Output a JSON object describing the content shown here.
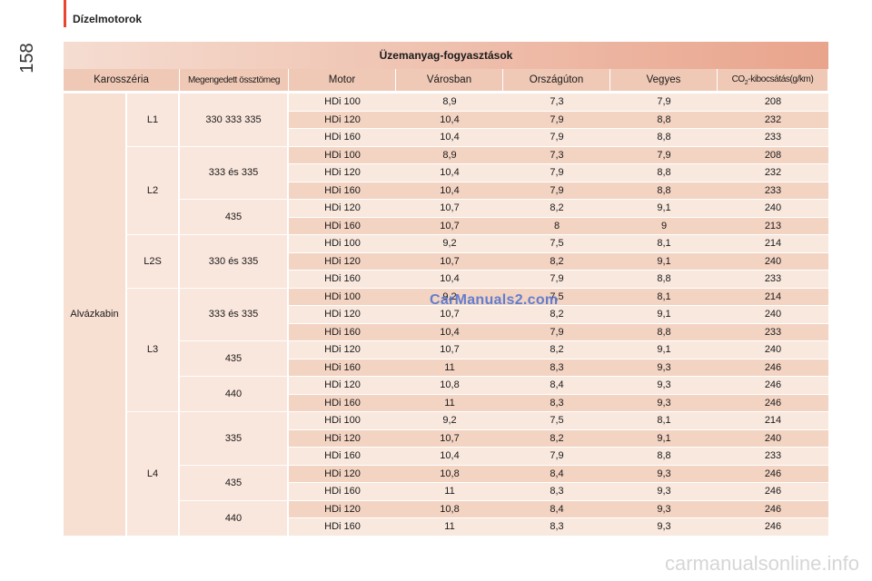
{
  "header": {
    "section": "Dízelmotorok",
    "page_number": "158"
  },
  "table": {
    "title": "Üzemanyag-fogyasztások",
    "columns": {
      "body": "Karosszéria",
      "weight": "Megengedett össztömeg",
      "engine": "Motor",
      "city": "Városban",
      "highway": "Országúton",
      "mixed": "Vegyes",
      "co2_prefix": "CO",
      "co2_sub": "2",
      "co2_suffix": "-kibocsátás(g/km)"
    },
    "body_type": "Alvázkabin",
    "lengths": [
      "L1",
      "L2",
      "L2S",
      "L3",
      "L4"
    ],
    "weights": [
      "330 333 335",
      "333 és 335",
      "435",
      "330 és 335",
      "333 és 335",
      "435",
      "440",
      "335",
      "435",
      "440"
    ],
    "rows": [
      [
        "HDi 100",
        "8,9",
        "7,3",
        "7,9",
        "208"
      ],
      [
        "HDi 120",
        "10,4",
        "7,9",
        "8,8",
        "232"
      ],
      [
        "HDi 160",
        "10,4",
        "7,9",
        "8,8",
        "233"
      ],
      [
        "HDi 100",
        "8,9",
        "7,3",
        "7,9",
        "208"
      ],
      [
        "HDi 120",
        "10,4",
        "7,9",
        "8,8",
        "232"
      ],
      [
        "HDi 160",
        "10,4",
        "7,9",
        "8,8",
        "233"
      ],
      [
        "HDi 120",
        "10,7",
        "8,2",
        "9,1",
        "240"
      ],
      [
        "HDi 160",
        "10,7",
        "8",
        "9",
        "213"
      ],
      [
        "HDi 100",
        "9,2",
        "7,5",
        "8,1",
        "214"
      ],
      [
        "HDi 120",
        "10,7",
        "8,2",
        "9,1",
        "240"
      ],
      [
        "HDi 160",
        "10,4",
        "7,9",
        "8,8",
        "233"
      ],
      [
        "HDi 100",
        "9,2",
        "7,5",
        "8,1",
        "214"
      ],
      [
        "HDi 120",
        "10,7",
        "8,2",
        "9,1",
        "240"
      ],
      [
        "HDi 160",
        "10,4",
        "7,9",
        "8,8",
        "233"
      ],
      [
        "HDi 120",
        "10,7",
        "8,2",
        "9,1",
        "240"
      ],
      [
        "HDi 160",
        "11",
        "8,3",
        "9,3",
        "246"
      ],
      [
        "HDi 120",
        "10,8",
        "8,4",
        "9,3",
        "246"
      ],
      [
        "HDi 160",
        "11",
        "8,3",
        "9,3",
        "246"
      ],
      [
        "HDi 100",
        "9,2",
        "7,5",
        "8,1",
        "214"
      ],
      [
        "HDi 120",
        "10,7",
        "8,2",
        "9,1",
        "240"
      ],
      [
        "HDi 160",
        "10,4",
        "7,9",
        "8,8",
        "233"
      ],
      [
        "HDi 120",
        "10,8",
        "8,4",
        "9,3",
        "246"
      ],
      [
        "HDi 160",
        "11",
        "8,3",
        "9,3",
        "246"
      ],
      [
        "HDi 120",
        "10,8",
        "8,4",
        "9,3",
        "246"
      ],
      [
        "HDi 160",
        "11",
        "8,3",
        "9,3",
        "246"
      ]
    ]
  },
  "watermark": "CarManuals2.com",
  "footer": "carmanualsonline.info",
  "colors": {
    "accent": "#e8452f",
    "header_bg": "#f0c9b6",
    "row_light": "#f9e8de",
    "row_dark": "#f3d3c2"
  }
}
